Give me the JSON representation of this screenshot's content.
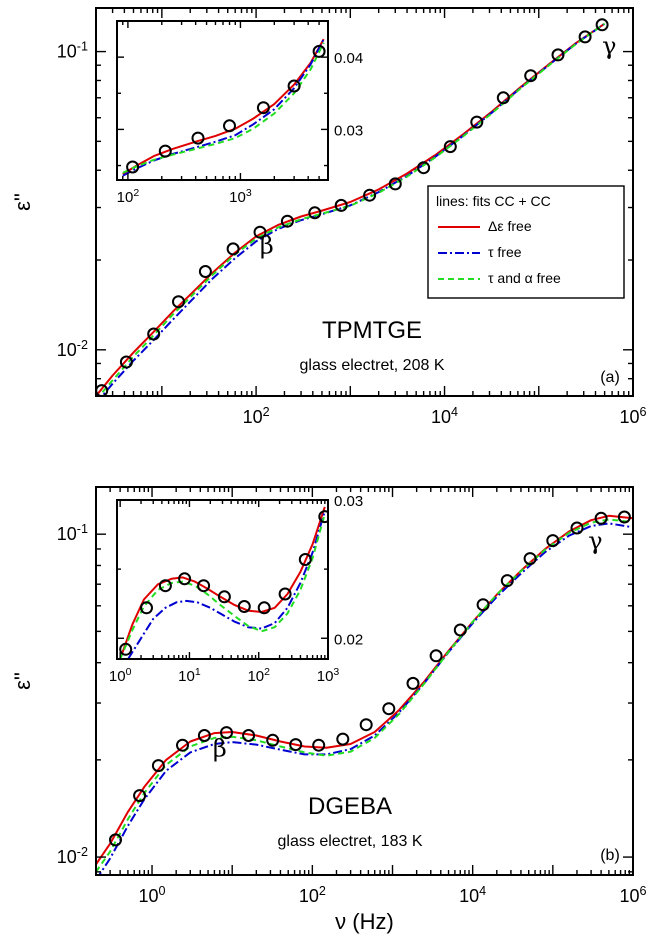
{
  "chart_data": [
    {
      "type": "line",
      "panel": "(a)",
      "material": "TPMTGE",
      "condition": "glass electret, 208 K",
      "xlabel": "",
      "ylabel": "ε\"",
      "xscale": "log",
      "yscale": "log",
      "xlim": [
        2,
        1000000
      ],
      "ylim": [
        0.007,
        0.14
      ],
      "x_tick_labels": [
        {
          "value": 100,
          "base": "10",
          "exp": "2"
        },
        {
          "value": 10000,
          "base": "10",
          "exp": "4"
        },
        {
          "value": 1000000,
          "base": "10",
          "exp": "6"
        }
      ],
      "y_tick_labels": [
        {
          "value": 0.01,
          "base": "10",
          "exp": "-2"
        },
        {
          "value": 0.1,
          "base": "10",
          "exp": "-1"
        }
      ],
      "annotations": [
        {
          "text": "β",
          "x": 130,
          "y": 0.021
        },
        {
          "text": "γ",
          "x": 560000,
          "y": 0.098
        }
      ],
      "legend": {
        "title": "lines: fits CC + CC",
        "placement": "middle-right",
        "entries": [
          {
            "label": "Δε free",
            "color": "#e00000",
            "dash": "solid"
          },
          {
            "label": "τ free",
            "color": "#0000d0",
            "dash": "dashdot"
          },
          {
            "label": "τ and α free",
            "color": "#22dd22",
            "dash": "dashed"
          }
        ]
      },
      "series": [
        {
          "kind": "points",
          "x": [
            2.3,
            4.2,
            8.2,
            15,
            29,
            57,
            110,
            215,
            420,
            800,
            1600,
            3000,
            6000,
            11500,
            22000,
            42000,
            82000,
            160000,
            310000,
            470000
          ],
          "y": [
            0.0073,
            0.0091,
            0.0113,
            0.0145,
            0.0183,
            0.0218,
            0.0248,
            0.027,
            0.0288,
            0.0305,
            0.033,
            0.036,
            0.0408,
            0.048,
            0.058,
            0.07,
            0.083,
            0.0975,
            0.112,
            0.123
          ]
        },
        {
          "kind": "line",
          "color": "#e00000",
          "dash": "solid",
          "x": [
            2,
            3,
            5,
            8,
            13,
            20,
            35,
            60,
            100,
            170,
            300,
            500,
            1000,
            2000,
            4000,
            8000,
            16000,
            32000,
            64000,
            130000,
            250000,
            500000
          ],
          "y": [
            0.007,
            0.0082,
            0.0098,
            0.0114,
            0.0134,
            0.0153,
            0.0182,
            0.0212,
            0.024,
            0.0262,
            0.028,
            0.0293,
            0.0313,
            0.0345,
            0.039,
            0.045,
            0.053,
            0.063,
            0.076,
            0.091,
            0.107,
            0.124
          ]
        },
        {
          "kind": "line",
          "color": "#0000d0",
          "dash": "dashdot",
          "x": [
            2,
            3,
            5,
            8,
            13,
            20,
            35,
            60,
            100,
            170,
            300,
            500,
            1000,
            2000,
            4000,
            8000,
            16000,
            32000,
            64000,
            130000,
            250000,
            500000
          ],
          "y": [
            0.0066,
            0.0077,
            0.0092,
            0.0107,
            0.0126,
            0.0145,
            0.0174,
            0.0203,
            0.0231,
            0.0254,
            0.0272,
            0.0285,
            0.0305,
            0.0338,
            0.0383,
            0.0444,
            0.0524,
            0.0625,
            0.0755,
            0.0905,
            0.1065,
            0.124
          ]
        },
        {
          "kind": "line",
          "color": "#22dd22",
          "dash": "dashed",
          "x": [
            2,
            3,
            5,
            8,
            13,
            20,
            35,
            60,
            100,
            170,
            300,
            500,
            1000,
            2000,
            4000,
            8000,
            16000,
            32000,
            64000,
            130000,
            250000,
            500000
          ],
          "y": [
            0.0068,
            0.0079,
            0.0095,
            0.0111,
            0.0131,
            0.015,
            0.0179,
            0.0209,
            0.0236,
            0.0257,
            0.0274,
            0.0286,
            0.0304,
            0.0336,
            0.0381,
            0.0442,
            0.0522,
            0.0622,
            0.0752,
            0.0902,
            0.1062,
            0.124
          ]
        }
      ],
      "inset": {
        "xscale": "log",
        "yscale": "linear",
        "xlim": [
          80,
          6000
        ],
        "ylim": [
          0.023,
          0.045
        ],
        "x_tick_labels": [
          {
            "value": 100,
            "base": "10",
            "exp": "2"
          },
          {
            "value": 1000,
            "base": "10",
            "exp": "3"
          }
        ],
        "y_tick_labels": [
          {
            "value": 0.03,
            "text": "0.03"
          },
          {
            "value": 0.04,
            "text": "0.04"
          }
        ],
        "series": [
          {
            "kind": "points",
            "x": [
              110,
              215,
              420,
              800,
              1600,
              3000,
              5000
            ],
            "y": [
              0.0248,
              0.027,
              0.0288,
              0.0305,
              0.033,
              0.036,
              0.0408
            ]
          },
          {
            "kind": "line",
            "color": "#e00000",
            "dash": "solid",
            "x": [
              90,
              120,
              170,
              250,
              400,
              600,
              900,
              1300,
              2000,
              3000,
              4200,
              5500
            ],
            "y": [
              0.0238,
              0.025,
              0.0263,
              0.0273,
              0.0283,
              0.0291,
              0.0301,
              0.0315,
              0.0335,
              0.0362,
              0.0392,
              0.0425
            ]
          },
          {
            "kind": "line",
            "color": "#0000d0",
            "dash": "dashdot",
            "x": [
              90,
              120,
              170,
              250,
              400,
              600,
              900,
              1300,
              2000,
              3000,
              4200,
              5500
            ],
            "y": [
              0.0236,
              0.0246,
              0.0257,
              0.0266,
              0.0275,
              0.0283,
              0.0292,
              0.0307,
              0.0328,
              0.0357,
              0.039,
              0.0425
            ]
          },
          {
            "kind": "line",
            "color": "#22dd22",
            "dash": "dashed",
            "x": [
              90,
              120,
              170,
              250,
              400,
              600,
              900,
              1300,
              2000,
              3000,
              4200,
              5500
            ],
            "y": [
              0.024,
              0.0249,
              0.0258,
              0.0265,
              0.0273,
              0.028,
              0.0288,
              0.0301,
              0.0322,
              0.035,
              0.0383,
              0.042
            ]
          }
        ]
      }
    },
    {
      "type": "line",
      "panel": "(b)",
      "material": "DGEBA",
      "condition": "glass electret, 183 K",
      "xlabel": "ν (Hz)",
      "ylabel": "ε\"",
      "xscale": "log",
      "yscale": "log",
      "xlim": [
        0.2,
        1000000
      ],
      "ylim": [
        0.0088,
        0.14
      ],
      "x_tick_labels": [
        {
          "value": 1,
          "base": "10",
          "exp": "0"
        },
        {
          "value": 100,
          "base": "10",
          "exp": "2"
        },
        {
          "value": 10000,
          "base": "10",
          "exp": "4"
        },
        {
          "value": 1000000,
          "base": "10",
          "exp": "6"
        }
      ],
      "y_tick_labels": [
        {
          "value": 0.01,
          "base": "10",
          "exp": "-2"
        },
        {
          "value": 0.1,
          "base": "10",
          "exp": "-1"
        }
      ],
      "annotations": [
        {
          "text": "β",
          "x": 7,
          "y": 0.0205
        },
        {
          "text": "γ",
          "x": 340000,
          "y": 0.09
        }
      ],
      "series": [
        {
          "kind": "points",
          "x": [
            0.35,
            0.7,
            1.2,
            2.4,
            4.5,
            8.5,
            16,
            32,
            62,
            120,
            240,
            470,
            900,
            1800,
            3500,
            7000,
            13500,
            27000,
            52000,
            100000,
            200000,
            400000,
            780000
          ],
          "y": [
            0.0113,
            0.0155,
            0.0192,
            0.0222,
            0.0238,
            0.0243,
            0.0238,
            0.023,
            0.0223,
            0.0222,
            0.0232,
            0.0257,
            0.0288,
            0.0345,
            0.042,
            0.0505,
            0.0605,
            0.0718,
            0.084,
            0.0955,
            0.1045,
            0.112,
            0.113
          ]
        },
        {
          "kind": "line",
          "color": "#e00000",
          "dash": "solid",
          "x": [
            0.2,
            0.3,
            0.5,
            0.8,
            1.5,
            3,
            6,
            10,
            20,
            40,
            80,
            150,
            300,
            600,
            1200,
            2500,
            5000,
            10000,
            20000,
            40000,
            80000,
            160000,
            300000,
            500000,
            1000000
          ],
          "y": [
            0.0095,
            0.011,
            0.0138,
            0.0165,
            0.02,
            0.0228,
            0.0242,
            0.0244,
            0.0238,
            0.0228,
            0.022,
            0.0218,
            0.0224,
            0.0244,
            0.0285,
            0.035,
            0.0435,
            0.0535,
            0.065,
            0.077,
            0.09,
            0.102,
            0.1105,
            0.114,
            0.112
          ]
        },
        {
          "kind": "line",
          "color": "#0000d0",
          "dash": "dashdot",
          "x": [
            0.2,
            0.3,
            0.5,
            0.8,
            1.5,
            3,
            6,
            10,
            20,
            40,
            80,
            150,
            300,
            600,
            1200,
            2500,
            5000,
            10000,
            20000,
            40000,
            80000,
            160000,
            300000,
            500000,
            1000000
          ],
          "y": [
            0.0085,
            0.0099,
            0.0125,
            0.0151,
            0.0185,
            0.0211,
            0.0224,
            0.0227,
            0.0223,
            0.0215,
            0.0208,
            0.0208,
            0.0216,
            0.0238,
            0.028,
            0.0346,
            0.0431,
            0.053,
            0.064,
            0.0755,
            0.088,
            0.099,
            0.106,
            0.108,
            0.105
          ]
        },
        {
          "kind": "line",
          "color": "#22dd22",
          "dash": "dashed",
          "x": [
            0.2,
            0.3,
            0.5,
            0.8,
            1.5,
            3,
            6,
            10,
            20,
            40,
            80,
            150,
            300,
            600,
            1200,
            2500,
            5000,
            10000,
            20000,
            40000,
            80000,
            160000,
            300000,
            500000,
            1000000
          ],
          "y": [
            0.009,
            0.0104,
            0.0131,
            0.0158,
            0.0193,
            0.022,
            0.0234,
            0.0236,
            0.023,
            0.022,
            0.0211,
            0.0206,
            0.0212,
            0.0234,
            0.0277,
            0.0345,
            0.0432,
            0.0535,
            0.065,
            0.0768,
            0.0895,
            0.101,
            0.1085,
            0.111,
            0.109
          ]
        }
      ],
      "inset": {
        "xscale": "log",
        "yscale": "linear",
        "xlim": [
          0.9,
          1000
        ],
        "ylim": [
          0.0185,
          0.03
        ],
        "x_tick_labels": [
          {
            "value": 1,
            "base": "10",
            "exp": "0"
          },
          {
            "value": 10,
            "base": "10",
            "exp": "1"
          },
          {
            "value": 100,
            "base": "10",
            "exp": "2"
          },
          {
            "value": 1000,
            "base": "10",
            "exp": "3"
          }
        ],
        "y_tick_labels": [
          {
            "value": 0.02,
            "text": "0.02"
          },
          {
            "value": 0.03,
            "text": "0.03"
          }
        ],
        "series": [
          {
            "kind": "points",
            "x": [
              1.2,
              2.4,
              4.5,
              8.5,
              16,
              32,
              62,
              120,
              240,
              470,
              900
            ],
            "y": [
              0.0192,
              0.0222,
              0.0238,
              0.0243,
              0.0238,
              0.023,
              0.0223,
              0.0222,
              0.0232,
              0.0257,
              0.0288
            ]
          },
          {
            "kind": "line",
            "color": "#e00000",
            "dash": "solid",
            "x": [
              1,
              1.5,
              2.2,
              3.5,
              5.5,
              8,
              12,
              18,
              28,
              45,
              70,
              110,
              170,
              260,
              400,
              600,
              900
            ],
            "y": [
              0.0185,
              0.021,
              0.0228,
              0.0239,
              0.0243,
              0.0244,
              0.0241,
              0.0236,
              0.023,
              0.0224,
              0.022,
              0.0219,
              0.0222,
              0.0232,
              0.0248,
              0.0268,
              0.0295
            ]
          },
          {
            "kind": "line",
            "color": "#0000d0",
            "dash": "dashdot",
            "x": [
              1.3,
              2,
              3,
              4.5,
              6.5,
              9,
              13,
              20,
              30,
              45,
              70,
              110,
              170,
              260,
              400,
              600,
              900
            ],
            "y": [
              0.0185,
              0.02,
              0.0214,
              0.0222,
              0.0226,
              0.0227,
              0.0226,
              0.0222,
              0.0217,
              0.0212,
              0.0208,
              0.0207,
              0.0211,
              0.0222,
              0.024,
              0.0262,
              0.0292
            ]
          },
          {
            "kind": "line",
            "color": "#22dd22",
            "dash": "dashed",
            "x": [
              1,
              1.5,
              2.2,
              3.5,
              5.5,
              8,
              12,
              18,
              28,
              45,
              70,
              110,
              170,
              260,
              400,
              600,
              900
            ],
            "y": [
              0.0185,
              0.0206,
              0.0223,
              0.0235,
              0.024,
              0.0241,
              0.0238,
              0.0232,
              0.0224,
              0.0216,
              0.0209,
              0.0205,
              0.0208,
              0.0218,
              0.0235,
              0.0258,
              0.029
            ]
          }
        ]
      }
    }
  ]
}
